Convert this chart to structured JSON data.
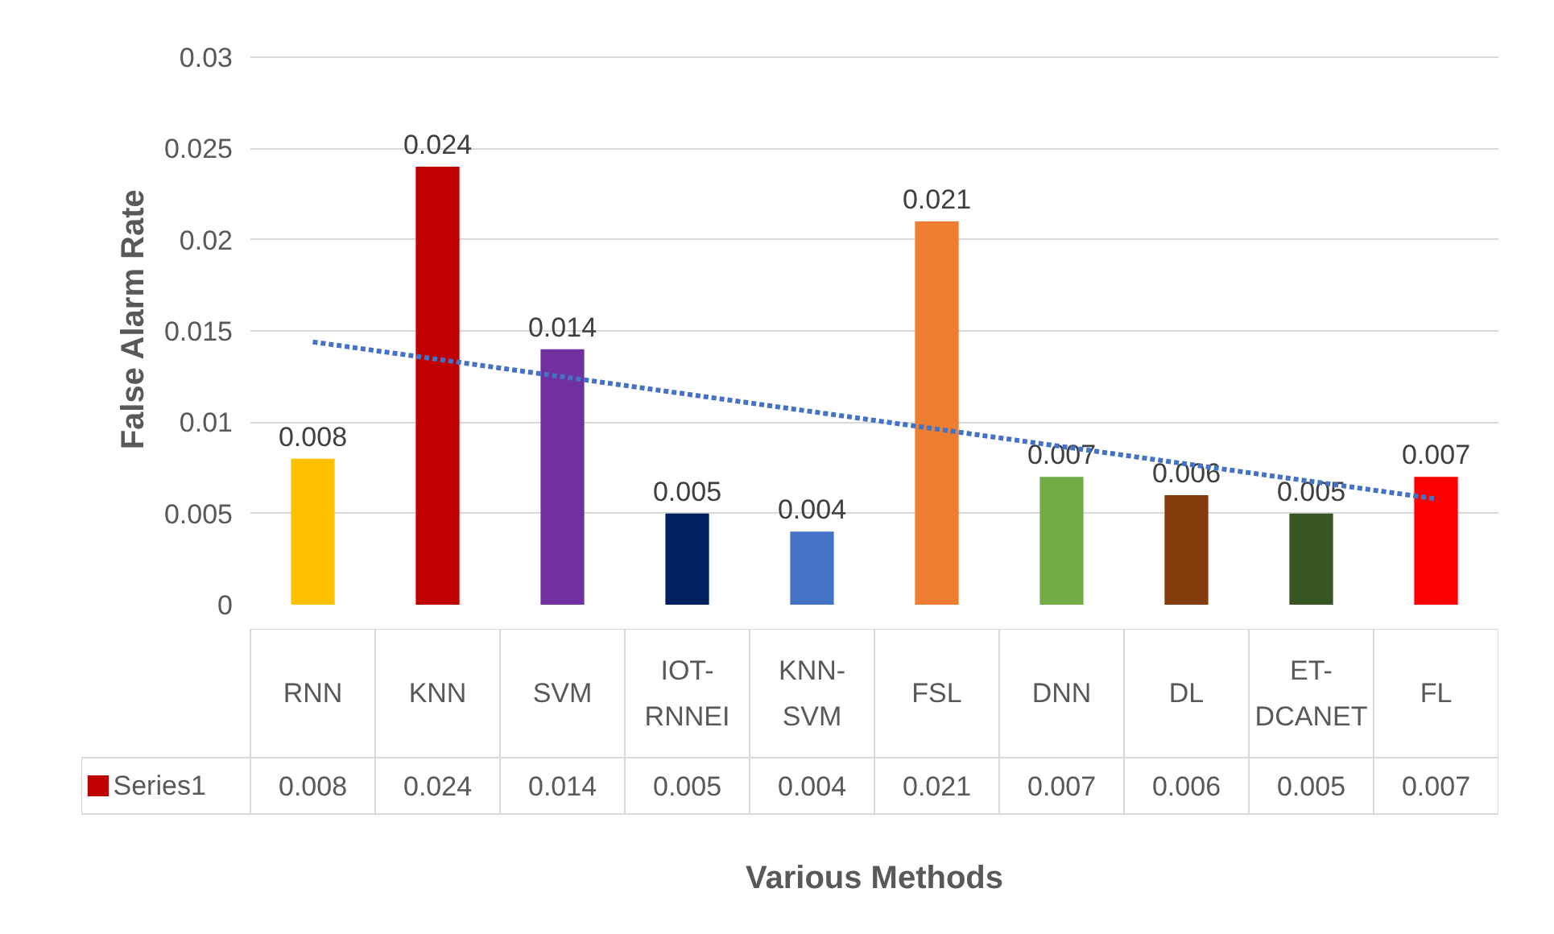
{
  "chart_data": {
    "type": "bar",
    "ylabel": "False Alarm Rate",
    "xlabel": "Various Methods",
    "categories": [
      "RNN",
      "KNN",
      "SVM",
      "IOT-RNNEI",
      "KNN-SVM",
      "FSL",
      "DNN",
      "DL",
      "ET-DCANET",
      "FL"
    ],
    "series": [
      {
        "name": "Series1",
        "values": [
          0.008,
          0.024,
          0.014,
          0.005,
          0.004,
          0.021,
          0.007,
          0.006,
          0.005,
          0.007
        ],
        "value_labels": [
          "0.008",
          "0.024",
          "0.014",
          "0.005",
          "0.004",
          "0.021",
          "0.007",
          "0.006",
          "0.005",
          "0.007"
        ],
        "colors": [
          "#ffc000",
          "#c00000",
          "#7030a0",
          "#002060",
          "#4472c4",
          "#ed7d31",
          "#70ad47",
          "#843c0c",
          "#375623",
          "#ff0000"
        ],
        "color": "#c00000"
      },
      {
        "type": "line",
        "x": [
          "RNN",
          "FL"
        ],
        "values": [
          0.0144,
          0.0058
        ],
        "color": "#4472c4",
        "line_style": "dotted"
      }
    ],
    "ylim": [
      0,
      0.03
    ],
    "yticks": [
      0,
      0.005,
      0.01,
      0.015,
      0.02,
      0.025,
      0.03
    ],
    "grid": "y",
    "legend": "bottom"
  }
}
